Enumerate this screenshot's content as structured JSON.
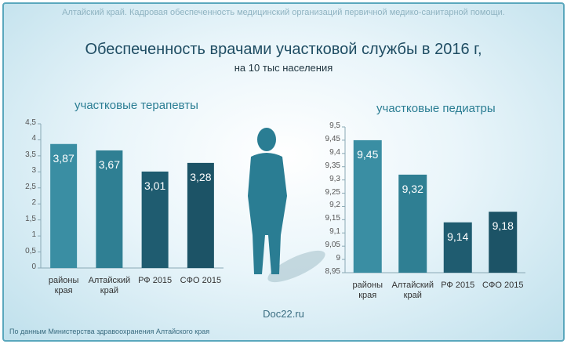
{
  "header": "Алтайский край. Кадровая обеспеченность медицинский организаций первичной медико-санитарной помощи.",
  "title": "Обеспеченность врачами участковой службы в 2016 г,",
  "subtitle": "на 10 тыс населения",
  "source": "По данным Министерства здравоохранения Алтайского края",
  "watermark": "Doc22.ru",
  "chart_data": [
    {
      "type": "bar",
      "title": "участковые терапевты",
      "categories": [
        "районы\nкрая",
        "Алтайский\nкрай",
        "РФ 2015",
        "СФО 2015"
      ],
      "values": [
        3.87,
        3.67,
        3.01,
        3.28
      ],
      "value_labels": [
        "3,87",
        "3,67",
        "3,01",
        "3,28"
      ],
      "colors": [
        "#3a8ea3",
        "#2f7f93",
        "#1f5c70",
        "#1c5366"
      ],
      "ylim": [
        0,
        4.5
      ],
      "yticks": [
        0,
        {
          "value": 0.5,
          "label": "0,5"
        },
        1,
        {
          "value": 1.5,
          "label": "1,5"
        },
        2,
        {
          "value": 2.5,
          "label": "2,5"
        },
        3,
        {
          "value": 3.5,
          "label": "3,5"
        },
        4,
        {
          "value": 4.5,
          "label": "4,5"
        }
      ]
    },
    {
      "type": "bar",
      "title": "участковые педиатры",
      "categories": [
        "районы\nкрая",
        "Алтайский\nкрай",
        "РФ 2015",
        "СФО 2015"
      ],
      "values": [
        9.45,
        9.32,
        9.14,
        9.18
      ],
      "value_labels": [
        "9,45",
        "9,32",
        "9,14",
        "9,18"
      ],
      "colors": [
        "#3a8ea3",
        "#2f7f93",
        "#1f5c70",
        "#1c5366"
      ],
      "ylim": [
        8.95,
        9.5
      ],
      "yticks": [
        {
          "value": 8.95,
          "label": "8,95"
        },
        9,
        {
          "value": 9.05,
          "label": "9,05"
        },
        {
          "value": 9.1,
          "label": "9,1"
        },
        {
          "value": 9.15,
          "label": "9,15"
        },
        {
          "value": 9.2,
          "label": "9,2"
        },
        {
          "value": 9.25,
          "label": "9,25"
        },
        {
          "value": 9.3,
          "label": "9,3"
        },
        {
          "value": 9.35,
          "label": "9,35"
        },
        {
          "value": 9.4,
          "label": "9,4"
        },
        {
          "value": 9.45,
          "label": "9,45"
        },
        {
          "value": 9.5,
          "label": "9,5"
        }
      ]
    }
  ]
}
